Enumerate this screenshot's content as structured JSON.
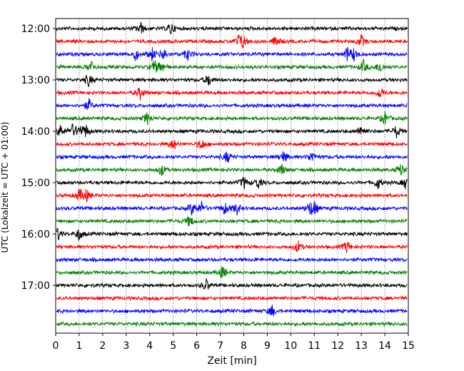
{
  "chart_data": {
    "type": "line",
    "title": "",
    "xlabel": "Zeit  [min]",
    "ylabel": "UTC (Lokalzeit = UTC + 01:00)",
    "xlim": [
      0,
      15
    ],
    "x_ticks": [
      0,
      1,
      2,
      3,
      4,
      5,
      6,
      7,
      8,
      9,
      10,
      11,
      12,
      13,
      14,
      15
    ],
    "vertical_grid": "dotted",
    "y_tick_labels": [
      "12:00",
      "13:00",
      "14:00",
      "15:00",
      "16:00",
      "17:00"
    ],
    "trace_interval_minutes": 15,
    "trace_colors": [
      "#000000",
      "#ff0000",
      "#0000ff",
      "#008000"
    ],
    "traces": [
      {
        "start": "12:00",
        "color": "#000000",
        "events_min": [
          3.6,
          4.9
        ]
      },
      {
        "start": "12:15",
        "color": "#ff0000",
        "events_min": [
          7.8,
          8.0,
          9.4,
          13.0
        ]
      },
      {
        "start": "12:30",
        "color": "#0000ff",
        "events_min": [
          3.4,
          4.1,
          4.6,
          5.6,
          12.4,
          12.7
        ]
      },
      {
        "start": "12:45",
        "color": "#008000",
        "events_min": [
          1.5,
          4.2,
          4.5,
          13.1,
          13.8
        ]
      },
      {
        "start": "13:00",
        "color": "#000000",
        "events_min": [
          1.4,
          6.5
        ]
      },
      {
        "start": "13:15",
        "color": "#ff0000",
        "events_min": [
          3.6,
          13.8
        ]
      },
      {
        "start": "13:30",
        "color": "#0000ff",
        "events_min": [
          1.4
        ]
      },
      {
        "start": "13:45",
        "color": "#008000",
        "events_min": [
          3.9,
          14.0
        ]
      },
      {
        "start": "14:00",
        "color": "#000000",
        "events_min": [
          0.2,
          0.7,
          1.0,
          1.3,
          13.0,
          14.5
        ]
      },
      {
        "start": "14:15",
        "color": "#ff0000",
        "events_min": [
          5.0,
          6.2
        ]
      },
      {
        "start": "14:30",
        "color": "#0000ff",
        "events_min": [
          7.3,
          9.7,
          10.9
        ]
      },
      {
        "start": "14:45",
        "color": "#008000",
        "events_min": [
          4.5,
          9.6,
          14.7
        ]
      },
      {
        "start": "15:00",
        "color": "#000000",
        "events_min": [
          8.0,
          8.6,
          13.7,
          14.9
        ]
      },
      {
        "start": "15:15",
        "color": "#ff0000",
        "events_min": [
          1.0,
          1.3
        ]
      },
      {
        "start": "15:30",
        "color": "#0000ff",
        "events_min": [
          5.8,
          6.2,
          7.2,
          7.7,
          10.8,
          11.0
        ]
      },
      {
        "start": "15:45",
        "color": "#008000",
        "events_min": [
          5.7
        ]
      },
      {
        "start": "16:00",
        "color": "#000000",
        "events_min": [
          0.1,
          1.0
        ]
      },
      {
        "start": "16:15",
        "color": "#ff0000",
        "events_min": [
          10.3,
          12.4
        ]
      },
      {
        "start": "16:30",
        "color": "#0000ff",
        "events_min": []
      },
      {
        "start": "16:45",
        "color": "#008000",
        "events_min": [
          7.1
        ]
      },
      {
        "start": "17:00",
        "color": "#000000",
        "events_min": [
          6.4
        ]
      },
      {
        "start": "17:15",
        "color": "#ff0000",
        "events_min": []
      },
      {
        "start": "17:30",
        "color": "#0000ff",
        "events_min": [
          9.2
        ]
      },
      {
        "start": "17:45",
        "color": "#008000",
        "events_min": []
      }
    ]
  }
}
